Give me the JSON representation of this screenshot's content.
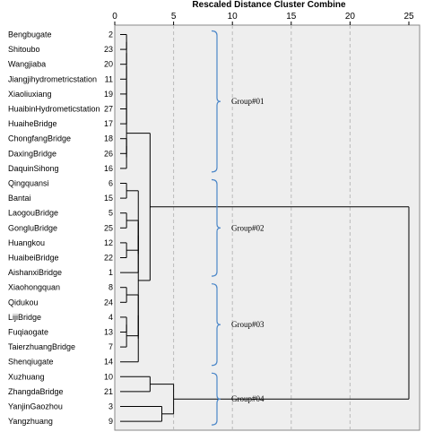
{
  "chart_data": {
    "type": "dendrogram",
    "title": "Rescaled Distance Cluster Combine",
    "xlim": [
      0,
      25
    ],
    "xticks": [
      0,
      5,
      10,
      15,
      20,
      25
    ],
    "grid": true,
    "leaves": [
      {
        "name": "Bengbugate",
        "id": "2"
      },
      {
        "name": "Shitoubo",
        "id": "23"
      },
      {
        "name": "Wangjiaba",
        "id": "20"
      },
      {
        "name": "Jiangjihydrometricstation",
        "id": "11"
      },
      {
        "name": "Xiaoliuxiang",
        "id": "19"
      },
      {
        "name": "HuaibinHydrometicstation",
        "id": "27"
      },
      {
        "name": "HuaiheBridge",
        "id": "17"
      },
      {
        "name": "ChongfangBridge",
        "id": "18"
      },
      {
        "name": "DaxingBridge",
        "id": "26"
      },
      {
        "name": "DaquinSihong",
        "id": "16"
      },
      {
        "name": "Qingquansi",
        "id": "6"
      },
      {
        "name": "Bantai",
        "id": "15"
      },
      {
        "name": "LaogouBridge",
        "id": "5"
      },
      {
        "name": "GongluBridge",
        "id": "25"
      },
      {
        "name": "Huangkou",
        "id": "12"
      },
      {
        "name": "HuaibeiBridge",
        "id": "22"
      },
      {
        "name": "AishanxiBridge",
        "id": "1"
      },
      {
        "name": "Xiaohongquan",
        "id": "8"
      },
      {
        "name": "Qidukou",
        "id": "24"
      },
      {
        "name": "LijiBridge",
        "id": "4"
      },
      {
        "name": "Fuqiaogate",
        "id": "13"
      },
      {
        "name": "TaierzhuangBridge",
        "id": "7"
      },
      {
        "name": "Shenqiugate",
        "id": "14"
      },
      {
        "name": "Xuzhuang",
        "id": "10"
      },
      {
        "name": "ZhangdaBridge",
        "id": "21"
      },
      {
        "name": "YanjinGaozhou",
        "id": "3"
      },
      {
        "name": "Yangzhuang",
        "id": "9"
      }
    ],
    "merges": [
      {
        "a": "L0",
        "b": "L1",
        "h": 1
      },
      {
        "a": "M0",
        "b": "L2",
        "h": 1
      },
      {
        "a": "M1",
        "b": "L3",
        "h": 1
      },
      {
        "a": "M2",
        "b": "L4",
        "h": 1
      },
      {
        "a": "M3",
        "b": "L5",
        "h": 1
      },
      {
        "a": "M4",
        "b": "L6",
        "h": 1
      },
      {
        "a": "L7",
        "b": "L8",
        "h": 1
      },
      {
        "a": "M6",
        "b": "L9",
        "h": 1
      },
      {
        "a": "M5",
        "b": "M7",
        "h": 1
      },
      {
        "a": "L10",
        "b": "L11",
        "h": 1
      },
      {
        "a": "L12",
        "b": "L13",
        "h": 1
      },
      {
        "a": "L14",
        "b": "L15",
        "h": 1
      },
      {
        "a": "M10",
        "b": "M11",
        "h": 2
      },
      {
        "a": "M12",
        "b": "L16",
        "h": 2
      },
      {
        "a": "M9",
        "b": "M13",
        "h": 2
      },
      {
        "a": "L17",
        "b": "L18",
        "h": 1
      },
      {
        "a": "L19",
        "b": "L20",
        "h": 1
      },
      {
        "a": "M16",
        "b": "L21",
        "h": 1
      },
      {
        "a": "M15",
        "b": "M17",
        "h": 2
      },
      {
        "a": "M18",
        "b": "L22",
        "h": 2
      },
      {
        "a": "M14",
        "b": "M19",
        "h": 2
      },
      {
        "a": "M8",
        "b": "M20",
        "h": 3
      },
      {
        "a": "L23",
        "b": "L24",
        "h": 3
      },
      {
        "a": "L25",
        "b": "L26",
        "h": 4
      },
      {
        "a": "M22",
        "b": "M23",
        "h": 5
      },
      {
        "a": "M21",
        "b": "M24",
        "h": 25
      }
    ],
    "groups": [
      {
        "label": "Group#01",
        "from": 0,
        "to": 9
      },
      {
        "label": "Group#02",
        "from": 10,
        "to": 16
      },
      {
        "label": "Group#03",
        "from": 17,
        "to": 22
      },
      {
        "label": "Group#04",
        "from": 23,
        "to": 26
      }
    ],
    "colors": {
      "plot_background": "#eeeeee",
      "gridline": "#bbbbbb",
      "bracket": "#4a86c8",
      "line": "#000000"
    }
  }
}
